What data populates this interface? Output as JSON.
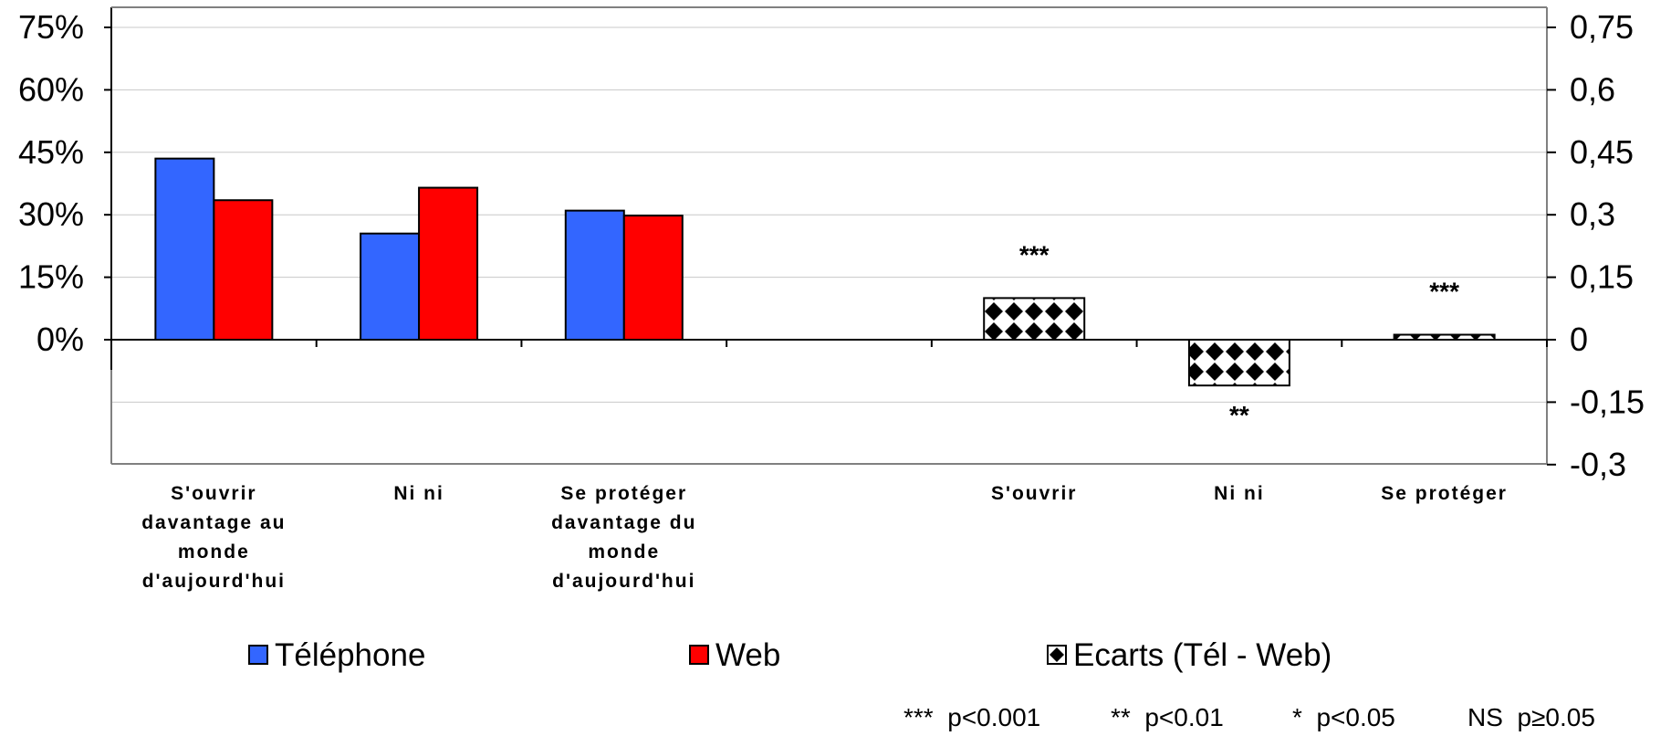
{
  "chart_data": {
    "type": "bar",
    "title": "",
    "left_axis": {
      "ticks": [
        "75%",
        "60%",
        "45%",
        "30%",
        "15%",
        "0%"
      ],
      "ylim": [
        -30,
        75
      ],
      "unit": "%"
    },
    "right_axis": {
      "ticks": [
        "0,75",
        "0,6",
        "0,45",
        "0,3",
        "0,15",
        "0",
        "-0,15",
        "-0,3"
      ],
      "ylim": [
        -0.3,
        0.75
      ]
    },
    "grid": true,
    "categories": [
      {
        "lines": [
          "S'ouvrir",
          "davantage au",
          "monde",
          "d'aujourd'hui"
        ]
      },
      {
        "lines": [
          "Ni ni"
        ]
      },
      {
        "lines": [
          "Se protéger",
          "davantage du",
          "monde",
          "d'aujourd'hui"
        ]
      },
      {
        "lines": []
      },
      {
        "lines": [
          "S'ouvrir"
        ]
      },
      {
        "lines": [
          "Ni ni"
        ]
      },
      {
        "lines": [
          "Se protéger"
        ]
      }
    ],
    "series": [
      {
        "name": "Téléphone",
        "color": "#3366ff",
        "axis": "left",
        "values": [
          43.5,
          25.5,
          31,
          null,
          null,
          null,
          null
        ]
      },
      {
        "name": "Web",
        "color": "#ff0000",
        "axis": "left",
        "values": [
          33.5,
          36.5,
          29.8,
          null,
          null,
          null,
          null
        ]
      },
      {
        "name": "Ecarts (Tél - Web)",
        "pattern": "diamond-checker",
        "axis": "right",
        "values": [
          null,
          null,
          null,
          null,
          0.1,
          -0.11,
          0.012
        ],
        "significance": [
          "",
          "",
          "",
          "",
          "***",
          "**",
          "***"
        ]
      }
    ],
    "legend_placement": "bottom",
    "notes": [
      "***  p<0.001",
      "**  p<0.01",
      "*  p<0.05",
      "NS  p≥0.05"
    ]
  }
}
